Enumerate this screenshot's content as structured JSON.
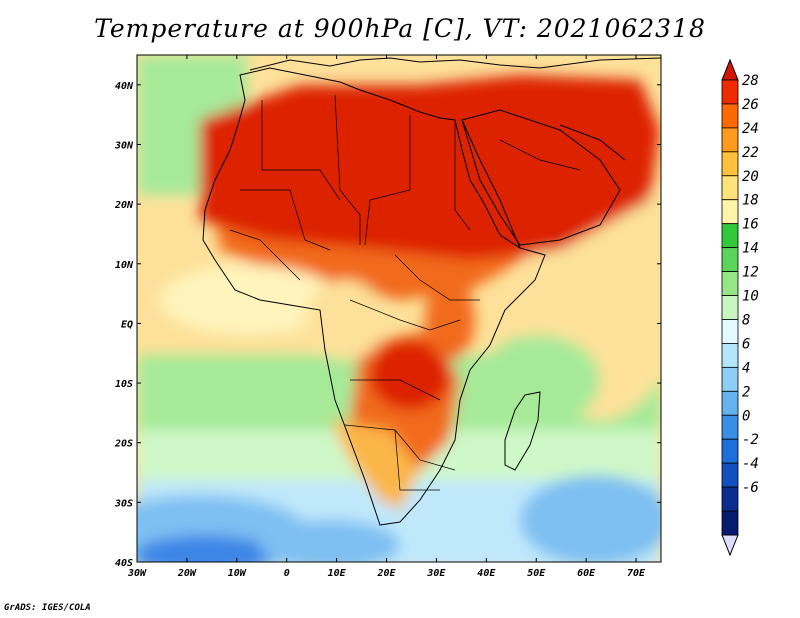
{
  "title": "Temperature at 900hPa [C], VT: 2021062318",
  "credit": "GrADS: IGES/COLA",
  "map": {
    "lon_range": [
      -30,
      75
    ],
    "lat_range": [
      -40,
      45
    ],
    "lon_ticks": [
      {
        "value": -30,
        "label": "30W"
      },
      {
        "value": -20,
        "label": "20W"
      },
      {
        "value": -10,
        "label": "10W"
      },
      {
        "value": 0,
        "label": "0"
      },
      {
        "value": 10,
        "label": "10E"
      },
      {
        "value": 20,
        "label": "20E"
      },
      {
        "value": 30,
        "label": "30E"
      },
      {
        "value": 40,
        "label": "40E"
      },
      {
        "value": 50,
        "label": "50E"
      },
      {
        "value": 60,
        "label": "60E"
      },
      {
        "value": 70,
        "label": "70E"
      }
    ],
    "lat_ticks": [
      {
        "value": 40,
        "label": "40N"
      },
      {
        "value": 30,
        "label": "30N"
      },
      {
        "value": 20,
        "label": "20N"
      },
      {
        "value": 10,
        "label": "10N"
      },
      {
        "value": 0,
        "label": "EQ"
      },
      {
        "value": -10,
        "label": "10S"
      },
      {
        "value": -20,
        "label": "20S"
      },
      {
        "value": -30,
        "label": "30S"
      },
      {
        "value": -40,
        "label": "40S"
      }
    ]
  },
  "colorbar": {
    "levels": [
      "28",
      "26",
      "24",
      "22",
      "20",
      "18",
      "16",
      "14",
      "12",
      "10",
      "8",
      "6",
      "4",
      "2",
      "0",
      "-2",
      "-4",
      "-6"
    ],
    "colors": [
      "#ee2c00",
      "#ff6a00",
      "#ff9a1c",
      "#ffc23a",
      "#ffe37a",
      "#fff4a8",
      "#31c83a",
      "#5ad45a",
      "#96e688",
      "#c8f5c0",
      "#e2fbff",
      "#b3e6fb",
      "#8dcef5",
      "#64b2ee",
      "#3a8ee6",
      "#1f6fdb",
      "#1250bf",
      "#0a2d8f",
      "#061a6e"
    ],
    "over_color": "#d21400",
    "under_color": "#e0dcff"
  },
  "field_colors": {
    "hot": "#dd2200",
    "warm": "#f26a1a",
    "mid": "#fbb648",
    "tan": "#fde19a",
    "pale": "#fff4bb",
    "green": "#60d060",
    "lightgreen": "#a6ea98",
    "mint": "#cff8c8",
    "lightblue": "#bfe8fb",
    "blue": "#7ec0f2",
    "deepblue": "#3d86e6"
  }
}
